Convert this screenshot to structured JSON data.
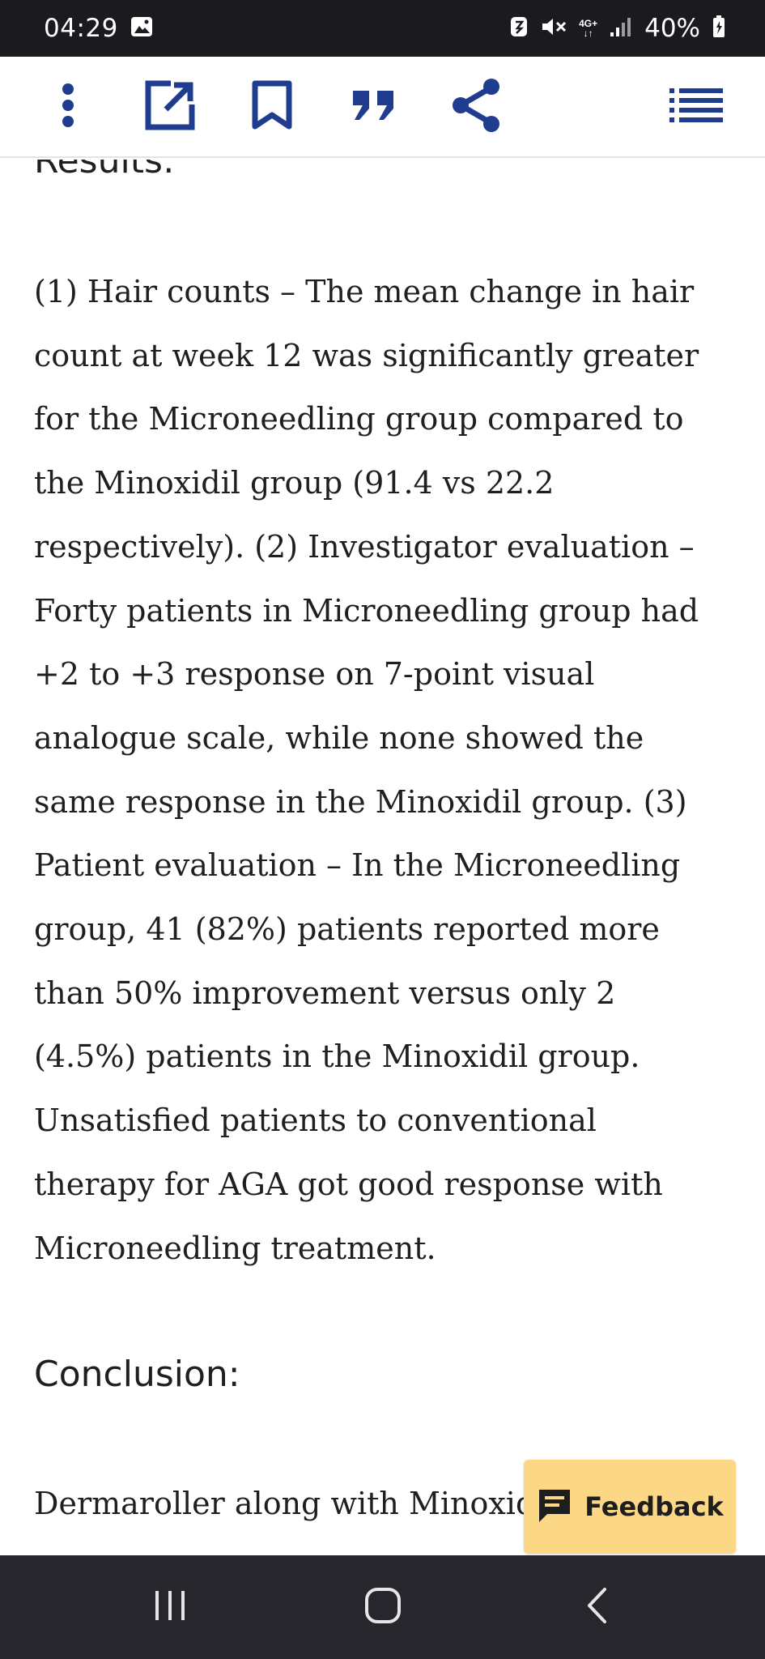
{
  "status_bar": {
    "time": "04:29",
    "network_type": "4G+",
    "battery_percent": "40%"
  },
  "toolbar": {
    "accent_color": "#1f3c8f",
    "icons": [
      "more-vert-icon",
      "open-external-icon",
      "bookmark-icon",
      "quote-icon",
      "share-icon",
      "table-of-contents-icon"
    ]
  },
  "article": {
    "results_heading": "Results:",
    "results_lines": [
      "(1) Hair counts – The mean change in hair",
      "count at week 12 was significantly greater",
      "for the Microneedling group compared to",
      "the Minoxidil group (91.4 vs 22.2",
      "respectively). (2) Investigator evaluation –",
      "Forty patients in Microneedling group had",
      "+2 to +3 response on 7-point visual",
      "analogue scale, while none showed the",
      "same response in the Minoxidil group. (3)",
      "Patient evaluation – In the Microneedling",
      "group, 41 (82%) patients reported more",
      "than 50% improvement versus only 2",
      "(4.5%) patients in the Minoxidil group.",
      "Unsatisfied patients to conventional",
      "therapy for AGA got good response with",
      "Microneedling treatment."
    ],
    "conclusion_heading": "Conclusion:",
    "conclusion_lines": [
      "Dermaroller along with Minoxidil"
    ]
  },
  "feedback": {
    "label": "Feedback",
    "background_color": "#fcd886"
  },
  "nav_bar": {
    "buttons": [
      "recent-apps-icon",
      "home-icon",
      "back-icon"
    ]
  }
}
